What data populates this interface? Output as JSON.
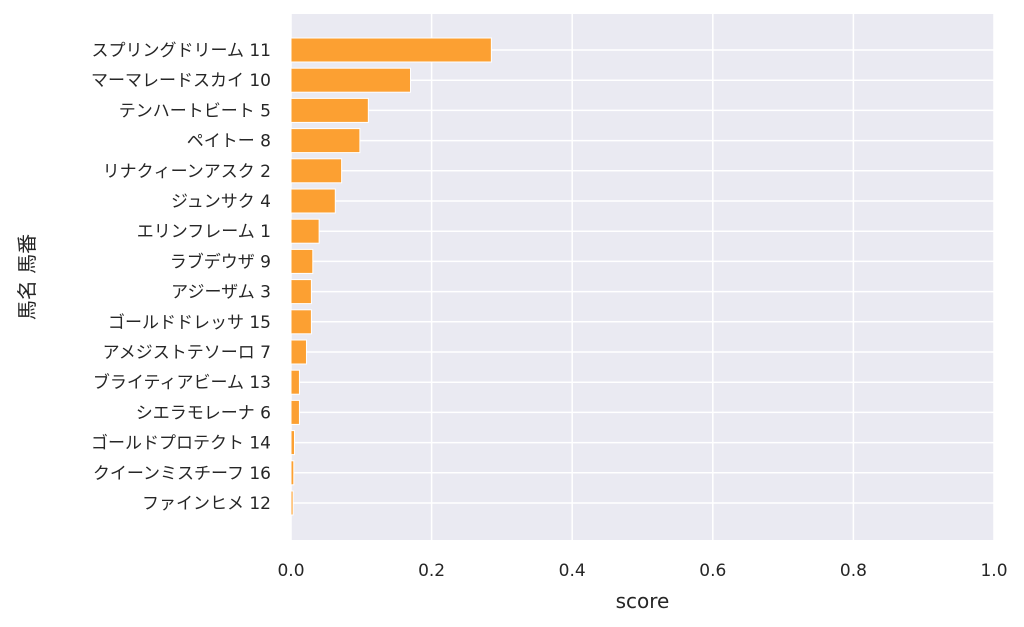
{
  "chart_data": {
    "type": "bar",
    "orientation": "horizontal",
    "xlabel": "score",
    "ylabel": "馬名 馬番",
    "xlim": [
      0,
      1.0
    ],
    "xticks": [
      "0.0",
      "0.2",
      "0.4",
      "0.6",
      "0.8",
      "1.0"
    ],
    "grid": true,
    "colors": {
      "bar": "#fca032",
      "bar_edge": "#ffffff",
      "plot_background": "#eaeaf2",
      "grid": "#ffffff"
    },
    "categories": [
      "スプリングドリーム 11",
      "マーマレードスカイ 10",
      "テンハートビート 5",
      "ペイトー 8",
      "リナクィーンアスク 2",
      "ジュンサク 4",
      "エリンフレーム 1",
      "ラブデウザ 9",
      "アジーザム 3",
      "ゴールドドレッサ 15",
      "アメジストテソーロ 7",
      "ブライティアビーム 13",
      "シエラモレーナ 6",
      "ゴールドプロテクト 14",
      "クイーンミスチーフ 16",
      "ファインヒメ 12"
    ],
    "values": [
      0.285,
      0.17,
      0.11,
      0.098,
      0.072,
      0.063,
      0.04,
      0.031,
      0.029,
      0.029,
      0.022,
      0.012,
      0.012,
      0.005,
      0.004,
      0.003
    ]
  }
}
